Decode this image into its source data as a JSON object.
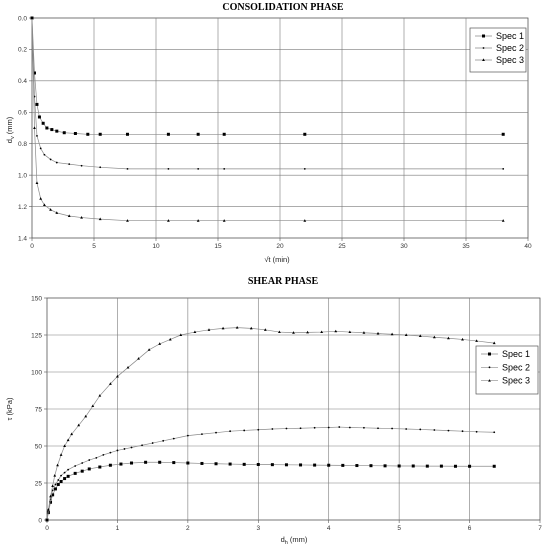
{
  "chart_data": [
    {
      "type": "line",
      "title": "CONSOLIDATION PHASE",
      "xlabel": "√t (min)",
      "ylabel": "d",
      "ylabel_sub": "v",
      "ylabel_unit": "(mm)",
      "xlim": [
        0,
        40
      ],
      "ylim": [
        1.4,
        0.0
      ],
      "y_inverted": true,
      "xticks": [
        "0",
        "5",
        "10",
        "15",
        "20",
        "25",
        "30",
        "35",
        "40"
      ],
      "yticks": [
        "0.0",
        "0.2",
        "0.4",
        "0.6",
        "0.8",
        "1.0",
        "1.2",
        "1.4"
      ],
      "grid": true,
      "legend_position": "top-right",
      "series": [
        {
          "name": "Spec 1",
          "marker": "square",
          "points": [
            [
              0,
              0.0
            ],
            [
              0.2,
              0.35
            ],
            [
              0.4,
              0.55
            ],
            [
              0.6,
              0.63
            ],
            [
              0.9,
              0.67
            ],
            [
              1.2,
              0.7
            ],
            [
              1.6,
              0.71
            ],
            [
              2.0,
              0.72
            ],
            [
              2.6,
              0.73
            ],
            [
              3.5,
              0.735
            ],
            [
              4.5,
              0.74
            ],
            [
              5.5,
              0.74
            ],
            [
              7.7,
              0.74
            ],
            [
              11,
              0.74
            ],
            [
              13.4,
              0.74
            ],
            [
              15.5,
              0.74
            ],
            [
              22,
              0.74
            ],
            [
              38,
              0.74
            ]
          ]
        },
        {
          "name": "Spec 2",
          "marker": "dot",
          "points": [
            [
              0,
              0.0
            ],
            [
              0.2,
              0.5
            ],
            [
              0.4,
              0.75
            ],
            [
              0.7,
              0.83
            ],
            [
              1.0,
              0.87
            ],
            [
              1.5,
              0.9
            ],
            [
              2.0,
              0.92
            ],
            [
              3.0,
              0.93
            ],
            [
              4.0,
              0.94
            ],
            [
              5.5,
              0.95
            ],
            [
              7.7,
              0.96
            ],
            [
              11,
              0.96
            ],
            [
              13.4,
              0.96
            ],
            [
              15.5,
              0.96
            ],
            [
              22,
              0.96
            ],
            [
              38,
              0.96
            ]
          ]
        },
        {
          "name": "Spec 3",
          "marker": "triangle",
          "points": [
            [
              0,
              0.0
            ],
            [
              0.2,
              0.7
            ],
            [
              0.4,
              1.05
            ],
            [
              0.7,
              1.15
            ],
            [
              1.0,
              1.19
            ],
            [
              1.5,
              1.22
            ],
            [
              2.0,
              1.24
            ],
            [
              3.0,
              1.26
            ],
            [
              4.0,
              1.27
            ],
            [
              5.5,
              1.28
            ],
            [
              7.7,
              1.29
            ],
            [
              11,
              1.29
            ],
            [
              13.4,
              1.29
            ],
            [
              15.5,
              1.29
            ],
            [
              22,
              1.29
            ],
            [
              38,
              1.29
            ]
          ]
        }
      ]
    },
    {
      "type": "line",
      "title": "SHEAR PHASE",
      "xlabel": "d",
      "xlabel_sub": "h",
      "xlabel_unit": "(mm)",
      "ylabel": "τ (kPa)",
      "xlim": [
        0,
        7
      ],
      "ylim": [
        0,
        150
      ],
      "xticks": [
        "0",
        "1",
        "2",
        "3",
        "4",
        "5",
        "6",
        "7"
      ],
      "yticks": [
        "0",
        "25",
        "50",
        "75",
        "100",
        "125",
        "150"
      ],
      "grid": true,
      "legend_position": "right",
      "series": [
        {
          "name": "Spec 1",
          "marker": "square",
          "points": [
            [
              0,
              0
            ],
            [
              0.02,
              5
            ],
            [
              0.05,
              12
            ],
            [
              0.08,
              17
            ],
            [
              0.12,
              21
            ],
            [
              0.16,
              24
            ],
            [
              0.2,
              26
            ],
            [
              0.25,
              28
            ],
            [
              0.3,
              29.5
            ],
            [
              0.4,
              31.5
            ],
            [
              0.5,
              33
            ],
            [
              0.6,
              34.5
            ],
            [
              0.75,
              35.8
            ],
            [
              0.9,
              37
            ],
            [
              1.05,
              37.8
            ],
            [
              1.2,
              38.5
            ],
            [
              1.4,
              39
            ],
            [
              1.6,
              39
            ],
            [
              1.8,
              38.8
            ],
            [
              2.0,
              38.5
            ],
            [
              2.2,
              38.2
            ],
            [
              2.4,
              38
            ],
            [
              2.6,
              37.8
            ],
            [
              2.8,
              37.6
            ],
            [
              3.0,
              37.5
            ],
            [
              3.2,
              37.4
            ],
            [
              3.4,
              37.3
            ],
            [
              3.6,
              37.2
            ],
            [
              3.8,
              37.1
            ],
            [
              4.0,
              37
            ],
            [
              4.2,
              36.9
            ],
            [
              4.4,
              36.8
            ],
            [
              4.6,
              36.7
            ],
            [
              4.8,
              36.6
            ],
            [
              5.0,
              36.5
            ],
            [
              5.2,
              36.5
            ],
            [
              5.4,
              36.4
            ],
            [
              5.6,
              36.4
            ],
            [
              5.8,
              36.3
            ],
            [
              6.0,
              36.3
            ],
            [
              6.35,
              36.3
            ]
          ]
        },
        {
          "name": "Spec 2",
          "marker": "dot",
          "points": [
            [
              0,
              0
            ],
            [
              0.02,
              6
            ],
            [
              0.05,
              14
            ],
            [
              0.08,
              20
            ],
            [
              0.12,
              24
            ],
            [
              0.16,
              27
            ],
            [
              0.2,
              30
            ],
            [
              0.25,
              32
            ],
            [
              0.3,
              34
            ],
            [
              0.4,
              36.5
            ],
            [
              0.5,
              38.5
            ],
            [
              0.6,
              40.5
            ],
            [
              0.7,
              42
            ],
            [
              0.8,
              44
            ],
            [
              0.9,
              45.5
            ],
            [
              1.0,
              47
            ],
            [
              1.1,
              48
            ],
            [
              1.2,
              49
            ],
            [
              1.35,
              50.5
            ],
            [
              1.5,
              52
            ],
            [
              1.65,
              53.5
            ],
            [
              1.8,
              55
            ],
            [
              2.0,
              57
            ],
            [
              2.2,
              58
            ],
            [
              2.4,
              59
            ],
            [
              2.6,
              60
            ],
            [
              2.8,
              60.5
            ],
            [
              3.0,
              61
            ],
            [
              3.2,
              61.5
            ],
            [
              3.4,
              61.8
            ],
            [
              3.6,
              62
            ],
            [
              3.8,
              62.3
            ],
            [
              4.0,
              62.5
            ],
            [
              4.15,
              62.8
            ],
            [
              4.3,
              62.5
            ],
            [
              4.5,
              62.3
            ],
            [
              4.7,
              62
            ],
            [
              4.9,
              61.8
            ],
            [
              5.1,
              61.5
            ],
            [
              5.3,
              61.2
            ],
            [
              5.5,
              60.8
            ],
            [
              5.7,
              60.4
            ],
            [
              5.9,
              60
            ],
            [
              6.1,
              59.6
            ],
            [
              6.35,
              59.3
            ]
          ]
        },
        {
          "name": "Spec 3",
          "marker": "triangle",
          "points": [
            [
              0,
              0
            ],
            [
              0.02,
              7
            ],
            [
              0.05,
              16
            ],
            [
              0.08,
              23
            ],
            [
              0.11,
              30
            ],
            [
              0.15,
              37
            ],
            [
              0.2,
              44
            ],
            [
              0.25,
              50
            ],
            [
              0.3,
              54
            ],
            [
              0.35,
              58
            ],
            [
              0.45,
              64
            ],
            [
              0.55,
              70
            ],
            [
              0.65,
              77
            ],
            [
              0.75,
              84
            ],
            [
              0.9,
              92
            ],
            [
              1.0,
              97
            ],
            [
              1.15,
              103
            ],
            [
              1.3,
              109
            ],
            [
              1.45,
              115
            ],
            [
              1.6,
              119
            ],
            [
              1.75,
              122
            ],
            [
              1.9,
              125
            ],
            [
              2.1,
              127
            ],
            [
              2.3,
              128.5
            ],
            [
              2.5,
              129.5
            ],
            [
              2.7,
              130
            ],
            [
              2.9,
              129.5
            ],
            [
              3.1,
              128.5
            ],
            [
              3.3,
              127
            ],
            [
              3.5,
              126.5
            ],
            [
              3.7,
              126.8
            ],
            [
              3.9,
              127
            ],
            [
              4.1,
              127.5
            ],
            [
              4.3,
              127
            ],
            [
              4.5,
              126.5
            ],
            [
              4.7,
              126
            ],
            [
              4.9,
              125.5
            ],
            [
              5.1,
              125
            ],
            [
              5.3,
              124.3
            ],
            [
              5.5,
              123.5
            ],
            [
              5.7,
              122.8
            ],
            [
              5.9,
              122
            ],
            [
              6.1,
              121
            ],
            [
              6.35,
              119.5
            ]
          ]
        }
      ]
    }
  ]
}
